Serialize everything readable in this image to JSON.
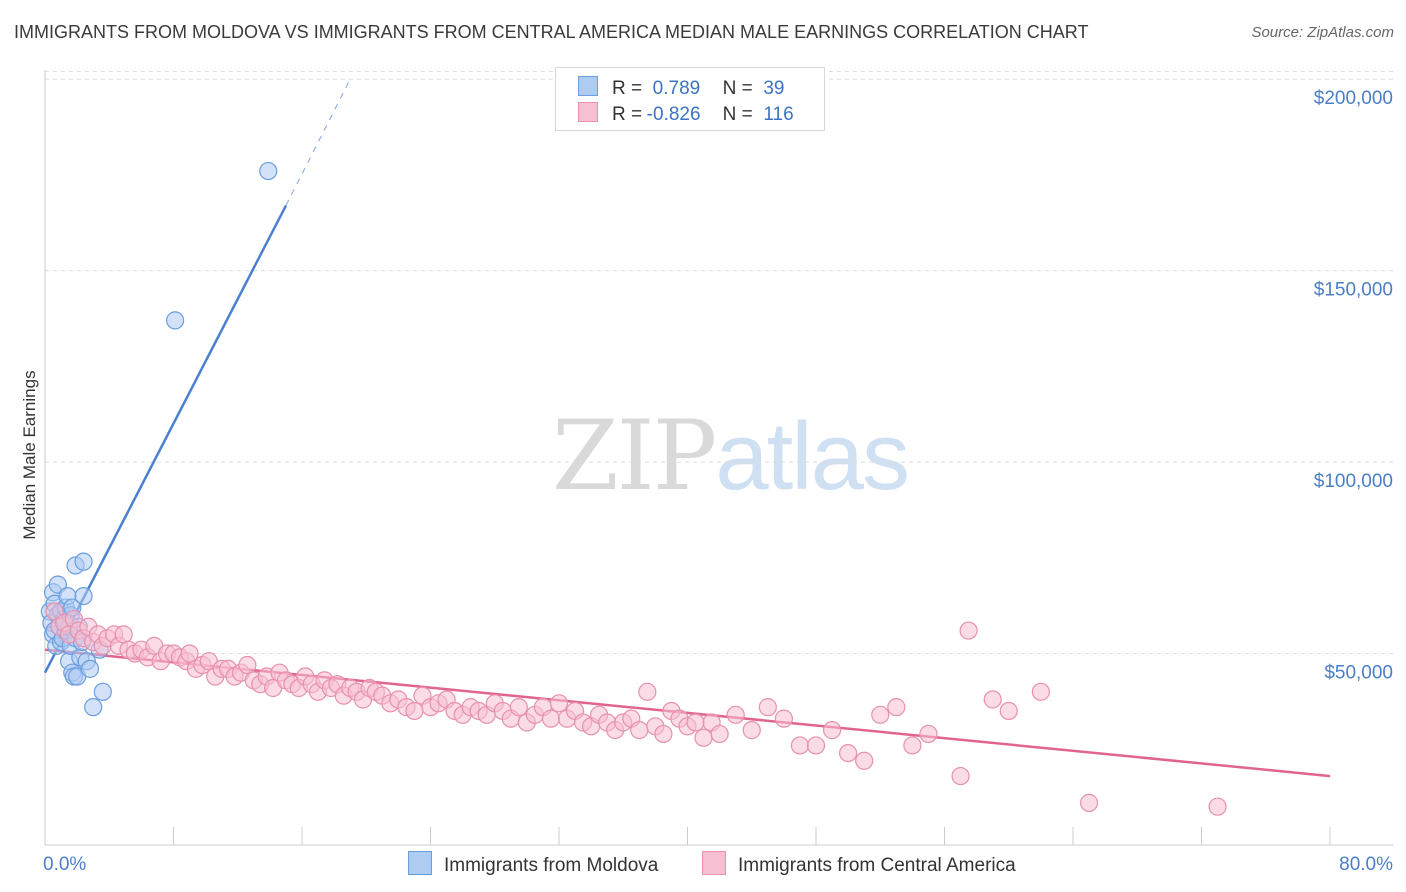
{
  "title": "IMMIGRANTS FROM MOLDOVA VS IMMIGRANTS FROM CENTRAL AMERICA MEDIAN MALE EARNINGS CORRELATION CHART",
  "source": "Source: ZipAtlas.com",
  "watermark": {
    "zip": "ZIP",
    "atlas": "atlas"
  },
  "legend": {
    "r_label": "R =",
    "n_label": "N =",
    "series": [
      {
        "name": "Immigrants from Moldova",
        "r": "0.789",
        "n": "39",
        "fill": "#aecbf2",
        "stroke": "#6a9edf"
      },
      {
        "name": "Immigrants from Central America",
        "r": "-0.826",
        "n": "116",
        "fill": "#f7bfd2",
        "stroke": "#e890ad"
      }
    ]
  },
  "chart_data": {
    "type": "scatter",
    "title": "IMMIGRANTS FROM MOLDOVA VS IMMIGRANTS FROM CENTRAL AMERICA MEDIAN MALE EARNINGS CORRELATION CHART",
    "xlabel": "",
    "ylabel": "Median Male Earnings",
    "xlim": [
      0,
      80
    ],
    "ylim": [
      0,
      205000
    ],
    "x_tick_labels": [
      "0.0%",
      "80.0%"
    ],
    "y_ticks": [
      50000,
      100000,
      150000,
      200000
    ],
    "y_tick_labels": [
      "$50,000",
      "$100,000",
      "$150,000",
      "$200,000"
    ],
    "grid": true,
    "series": [
      {
        "name": "Immigrants from Moldova",
        "color": "#4a80d0",
        "trend": {
          "x0": 0,
          "y0": 45000,
          "x1": 15,
          "y1": 167000,
          "dash_to_x": 19,
          "dash_to_y": 200000
        },
        "points": [
          [
            0.3,
            61000
          ],
          [
            0.4,
            58000
          ],
          [
            0.5,
            66000
          ],
          [
            0.5,
            55000
          ],
          [
            0.6,
            63000
          ],
          [
            0.6,
            56000
          ],
          [
            0.7,
            52000
          ],
          [
            0.8,
            60000
          ],
          [
            0.8,
            68000
          ],
          [
            0.9,
            57000
          ],
          [
            1.0,
            53000
          ],
          [
            1.0,
            61000
          ],
          [
            1.1,
            54000
          ],
          [
            1.2,
            59000
          ],
          [
            1.3,
            62000
          ],
          [
            1.3,
            56000
          ],
          [
            1.4,
            65000
          ],
          [
            1.5,
            48000
          ],
          [
            1.5,
            57000
          ],
          [
            1.6,
            60000
          ],
          [
            1.6,
            52000
          ],
          [
            1.7,
            45000
          ],
          [
            1.7,
            62000
          ],
          [
            1.8,
            44000
          ],
          [
            1.9,
            73000
          ],
          [
            1.9,
            54000
          ],
          [
            2.0,
            44000
          ],
          [
            2.1,
            57000
          ],
          [
            2.2,
            49000
          ],
          [
            2.3,
            53000
          ],
          [
            2.4,
            74000
          ],
          [
            2.4,
            65000
          ],
          [
            2.6,
            48000
          ],
          [
            2.8,
            46000
          ],
          [
            3.0,
            36000
          ],
          [
            3.4,
            51000
          ],
          [
            3.6,
            40000
          ],
          [
            8.1,
            137000
          ],
          [
            13.9,
            176000
          ]
        ]
      },
      {
        "name": "Immigrants from Central America",
        "color": "#e0648f",
        "trend": {
          "x0": 0,
          "y0": 51000,
          "x1": 80,
          "y1": 18000
        },
        "points": [
          [
            0.6,
            61000
          ],
          [
            0.9,
            57000
          ],
          [
            1.2,
            58000
          ],
          [
            1.5,
            55000
          ],
          [
            1.8,
            59000
          ],
          [
            2.1,
            56000
          ],
          [
            2.4,
            54000
          ],
          [
            2.7,
            57000
          ],
          [
            3.0,
            53000
          ],
          [
            3.3,
            55000
          ],
          [
            3.6,
            52000
          ],
          [
            3.9,
            54000
          ],
          [
            4.3,
            55000
          ],
          [
            4.6,
            52000
          ],
          [
            4.9,
            55000
          ],
          [
            5.2,
            51000
          ],
          [
            5.6,
            50000
          ],
          [
            6.0,
            51000
          ],
          [
            6.4,
            49000
          ],
          [
            6.8,
            52000
          ],
          [
            7.2,
            48000
          ],
          [
            7.6,
            50000
          ],
          [
            8.0,
            50000
          ],
          [
            8.4,
            49000
          ],
          [
            8.8,
            48000
          ],
          [
            9.0,
            50000
          ],
          [
            9.4,
            46000
          ],
          [
            9.8,
            47000
          ],
          [
            10.2,
            48000
          ],
          [
            10.6,
            44000
          ],
          [
            11.0,
            46000
          ],
          [
            11.4,
            46000
          ],
          [
            11.8,
            44000
          ],
          [
            12.2,
            45000
          ],
          [
            12.6,
            47000
          ],
          [
            13.0,
            43000
          ],
          [
            13.4,
            42000
          ],
          [
            13.8,
            44000
          ],
          [
            14.2,
            41000
          ],
          [
            14.6,
            45000
          ],
          [
            15.0,
            43000
          ],
          [
            15.4,
            42000
          ],
          [
            15.8,
            41000
          ],
          [
            16.2,
            44000
          ],
          [
            16.6,
            42000
          ],
          [
            17.0,
            40000
          ],
          [
            17.4,
            43000
          ],
          [
            17.8,
            41000
          ],
          [
            18.2,
            42000
          ],
          [
            18.6,
            39000
          ],
          [
            19.0,
            41000
          ],
          [
            19.4,
            40000
          ],
          [
            19.8,
            38000
          ],
          [
            20.2,
            41000
          ],
          [
            20.6,
            40000
          ],
          [
            21.0,
            39000
          ],
          [
            21.5,
            37000
          ],
          [
            22.0,
            38000
          ],
          [
            22.5,
            36000
          ],
          [
            23.0,
            35000
          ],
          [
            23.5,
            39000
          ],
          [
            24.0,
            36000
          ],
          [
            24.5,
            37000
          ],
          [
            25.0,
            38000
          ],
          [
            25.5,
            35000
          ],
          [
            26.0,
            34000
          ],
          [
            26.5,
            36000
          ],
          [
            27.0,
            35000
          ],
          [
            27.5,
            34000
          ],
          [
            28.0,
            37000
          ],
          [
            28.5,
            35000
          ],
          [
            29.0,
            33000
          ],
          [
            29.5,
            36000
          ],
          [
            30.0,
            32000
          ],
          [
            30.5,
            34000
          ],
          [
            31.0,
            36000
          ],
          [
            31.5,
            33000
          ],
          [
            32.0,
            37000
          ],
          [
            32.5,
            33000
          ],
          [
            33.0,
            35000
          ],
          [
            33.5,
            32000
          ],
          [
            34.0,
            31000
          ],
          [
            34.5,
            34000
          ],
          [
            35.0,
            32000
          ],
          [
            35.5,
            30000
          ],
          [
            36.0,
            32000
          ],
          [
            36.5,
            33000
          ],
          [
            37.0,
            30000
          ],
          [
            37.5,
            40000
          ],
          [
            38.0,
            31000
          ],
          [
            38.5,
            29000
          ],
          [
            39.0,
            35000
          ],
          [
            39.5,
            33000
          ],
          [
            40.0,
            31000
          ],
          [
            40.5,
            32000
          ],
          [
            41.0,
            28000
          ],
          [
            41.5,
            32000
          ],
          [
            42.0,
            29000
          ],
          [
            43.0,
            34000
          ],
          [
            44.0,
            30000
          ],
          [
            45.0,
            36000
          ],
          [
            46.0,
            33000
          ],
          [
            47.0,
            26000
          ],
          [
            48.0,
            26000
          ],
          [
            49.0,
            30000
          ],
          [
            50.0,
            24000
          ],
          [
            51.0,
            22000
          ],
          [
            52.0,
            34000
          ],
          [
            53.0,
            36000
          ],
          [
            54.0,
            26000
          ],
          [
            55.0,
            29000
          ],
          [
            57.5,
            56000
          ],
          [
            57.0,
            18000
          ],
          [
            59.0,
            38000
          ],
          [
            60.0,
            35000
          ],
          [
            62.0,
            40000
          ],
          [
            65.0,
            11000
          ],
          [
            73.0,
            10000
          ]
        ]
      }
    ]
  }
}
